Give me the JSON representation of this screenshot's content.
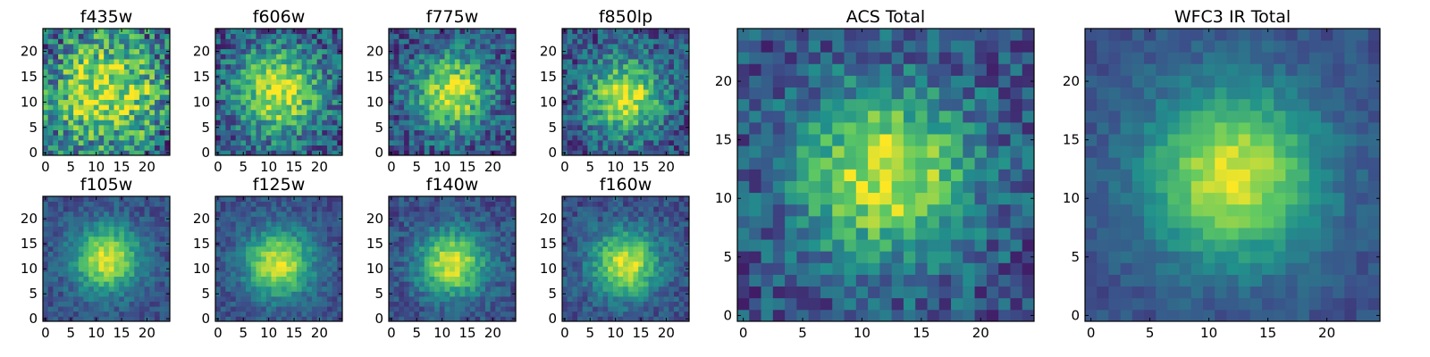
{
  "figure": {
    "colormap": [
      "#440154",
      "#3b528b",
      "#21918c",
      "#5ec962",
      "#fde725"
    ]
  },
  "chart_data": [
    {
      "type": "heatmap",
      "title": "f435w",
      "grid_size": 25,
      "peak": [
        12,
        12
      ],
      "profile_width": 8,
      "noise": 0.55,
      "xticks": [
        0,
        5,
        10,
        15,
        20
      ],
      "yticks": [
        0,
        5,
        10,
        15,
        20
      ],
      "xlim": [
        0,
        24
      ],
      "ylim": [
        0,
        24
      ],
      "colorscale": "viridis"
    },
    {
      "type": "heatmap",
      "title": "f606w",
      "grid_size": 25,
      "peak": [
        12,
        12
      ],
      "profile_width": 6,
      "noise": 0.4,
      "xticks": [
        0,
        5,
        10,
        15,
        20
      ],
      "yticks": [
        0,
        5,
        10,
        15,
        20
      ],
      "xlim": [
        0,
        24
      ],
      "ylim": [
        0,
        24
      ],
      "colorscale": "viridis"
    },
    {
      "type": "heatmap",
      "title": "f775w",
      "grid_size": 25,
      "peak": [
        12,
        12
      ],
      "profile_width": 5,
      "noise": 0.35,
      "xticks": [
        0,
        5,
        10,
        15,
        20
      ],
      "yticks": [
        0,
        5,
        10,
        15,
        20
      ],
      "xlim": [
        0,
        24
      ],
      "ylim": [
        0,
        24
      ],
      "colorscale": "viridis"
    },
    {
      "type": "heatmap",
      "title": "f850lp",
      "grid_size": 25,
      "peak": [
        12,
        11
      ],
      "profile_width": 5,
      "noise": 0.35,
      "xticks": [
        0,
        5,
        10,
        15,
        20
      ],
      "yticks": [
        0,
        5,
        10,
        15,
        20
      ],
      "xlim": [
        0,
        24
      ],
      "ylim": [
        0,
        24
      ],
      "colorscale": "viridis"
    },
    {
      "type": "heatmap",
      "title": "f105w",
      "grid_size": 25,
      "peak": [
        12,
        12
      ],
      "profile_width": 4.5,
      "noise": 0.18,
      "xticks": [
        0,
        5,
        10,
        15,
        20
      ],
      "yticks": [
        0,
        5,
        10,
        15,
        20
      ],
      "xlim": [
        0,
        24
      ],
      "ylim": [
        0,
        24
      ],
      "colorscale": "viridis"
    },
    {
      "type": "heatmap",
      "title": "f125w",
      "grid_size": 25,
      "peak": [
        12,
        11
      ],
      "profile_width": 4.5,
      "noise": 0.18,
      "xticks": [
        0,
        5,
        10,
        15,
        20
      ],
      "yticks": [
        0,
        5,
        10,
        15,
        20
      ],
      "xlim": [
        0,
        24
      ],
      "ylim": [
        0,
        24
      ],
      "colorscale": "viridis"
    },
    {
      "type": "heatmap",
      "title": "f140w",
      "grid_size": 25,
      "peak": [
        12,
        11
      ],
      "profile_width": 4.5,
      "noise": 0.2,
      "xticks": [
        0,
        5,
        10,
        15,
        20
      ],
      "yticks": [
        0,
        5,
        10,
        15,
        20
      ],
      "xlim": [
        0,
        24
      ],
      "ylim": [
        0,
        24
      ],
      "colorscale": "viridis"
    },
    {
      "type": "heatmap",
      "title": "f160w",
      "grid_size": 25,
      "peak": [
        12,
        11
      ],
      "profile_width": 4.5,
      "noise": 0.2,
      "xticks": [
        0,
        5,
        10,
        15,
        20
      ],
      "yticks": [
        0,
        5,
        10,
        15,
        20
      ],
      "xlim": [
        0,
        24
      ],
      "ylim": [
        0,
        24
      ],
      "colorscale": "viridis"
    },
    {
      "type": "heatmap",
      "title": "ACS Total",
      "grid_size": 25,
      "peak": [
        12,
        12
      ],
      "profile_width": 5,
      "noise": 0.3,
      "xticks": [
        0,
        5,
        10,
        15,
        20
      ],
      "yticks": [
        0,
        5,
        10,
        15,
        20
      ],
      "xlim": [
        0,
        24
      ],
      "ylim": [
        0,
        24
      ],
      "colorscale": "viridis"
    },
    {
      "type": "heatmap",
      "title": "WFC3 IR Total",
      "grid_size": 25,
      "peak": [
        12,
        12
      ],
      "profile_width": 5,
      "noise": 0.12,
      "xticks": [
        0,
        5,
        10,
        15,
        20
      ],
      "yticks": [
        0,
        5,
        10,
        15,
        20
      ],
      "xlim": [
        0,
        24
      ],
      "ylim": [
        0,
        24
      ],
      "colorscale": "viridis"
    }
  ]
}
